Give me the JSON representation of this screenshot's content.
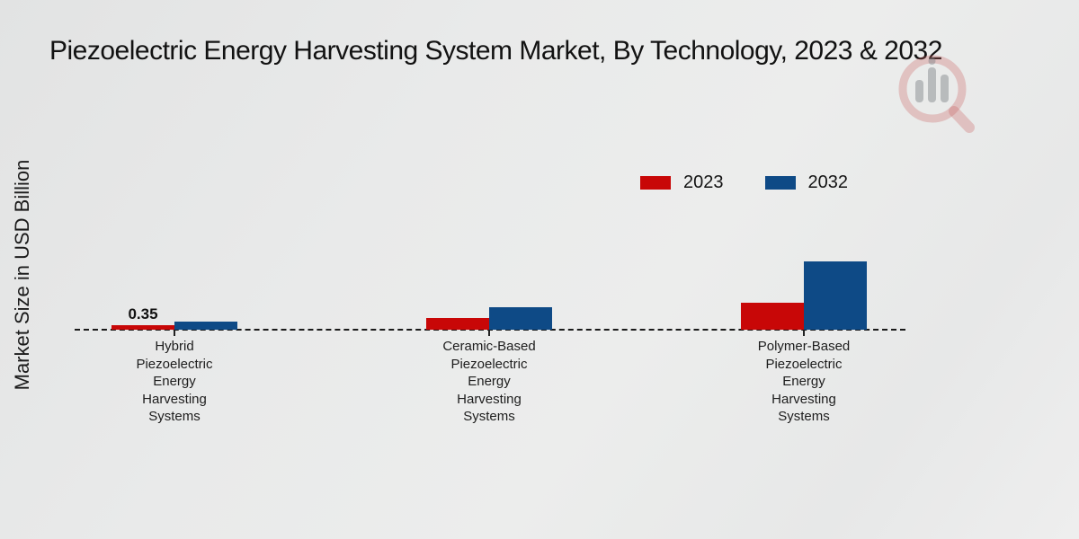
{
  "page": {
    "title": "Piezoelectric Energy Harvesting System Market, By Technology, 2023 & 2032",
    "y_axis_label": "Market Size in USD Billion"
  },
  "legend": {
    "items": [
      {
        "label": "2023",
        "color": "#c80707"
      },
      {
        "label": "2032",
        "color": "#0e4a86"
      }
    ]
  },
  "chart_data": {
    "type": "bar",
    "title": "Piezoelectric Energy Harvesting System Market, By Technology, 2023 & 2032",
    "xlabel": "",
    "ylabel": "Market Size in USD Billion",
    "unit": "USD Billion",
    "categories": [
      "Hybrid Piezoelectric Energy Harvesting Systems",
      "Ceramic-Based Piezoelectric Energy Harvesting Systems",
      "Polymer-Based Piezoelectric Energy Harvesting Systems"
    ],
    "categories_display_lines": [
      [
        "Hybrid",
        "Piezoelectric",
        "Energy",
        "Harvesting",
        "Systems"
      ],
      [
        "Ceramic-Based",
        "Piezoelectric",
        "Energy",
        "Harvesting",
        "Systems"
      ],
      [
        "Polymer-Based",
        "Piezoelectric",
        "Energy",
        "Harvesting",
        "Systems"
      ]
    ],
    "series": [
      {
        "name": "2023",
        "color": "#c80707",
        "values": [
          0.35,
          1.0,
          2.35
        ]
      },
      {
        "name": "2032",
        "color": "#0e4a86",
        "values": [
          0.7,
          1.95,
          5.9
        ]
      }
    ],
    "data_labels": [
      {
        "series": "2023",
        "category_index": 0,
        "text": "0.35"
      }
    ],
    "baseline_value": 0,
    "baseline_style": "dashed",
    "grid": false,
    "legend_position": "upper-center-inside"
  },
  "branding": {
    "watermark_icon": "magnifier-bar-chart-logo",
    "footer_bar_red": "#bf0404",
    "footer_strip_blue": "#0e4a86"
  },
  "colors": {
    "background": "#e9eaea",
    "series_2023_red": "#c80707",
    "series_2032_blue": "#0e4a86",
    "text": "#161616"
  }
}
